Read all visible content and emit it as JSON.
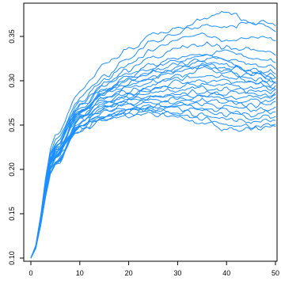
{
  "chart_data": {
    "type": "line",
    "title": "",
    "xlabel": "",
    "ylabel": "",
    "xlim": [
      0,
      50
    ],
    "ylim": [
      0.09,
      0.38
    ],
    "x_ticks": [
      0,
      10,
      20,
      30,
      40,
      50
    ],
    "y_ticks": [
      0.1,
      0.15,
      0.2,
      0.25,
      0.3,
      0.35
    ],
    "x_tick_labels": [
      "0",
      "10",
      "20",
      "30",
      "40",
      "50"
    ],
    "y_tick_labels": [
      "0.10",
      "0.15",
      "0.20",
      "0.25",
      "0.30",
      "0.35"
    ],
    "line_color": "#1e90ff",
    "grid": false,
    "legend": "none",
    "x": [
      0,
      5,
      10,
      15,
      20,
      25,
      30,
      35,
      40,
      45,
      50
    ],
    "series": [
      {
        "values": [
          0.1,
          0.238,
          0.288,
          0.318,
          0.335,
          0.352,
          0.358,
          0.37,
          0.378,
          0.366,
          0.362
        ]
      },
      {
        "values": [
          0.1,
          0.232,
          0.28,
          0.305,
          0.325,
          0.345,
          0.355,
          0.362,
          0.36,
          0.366,
          0.356
        ]
      },
      {
        "values": [
          0.1,
          0.23,
          0.276,
          0.3,
          0.318,
          0.335,
          0.348,
          0.352,
          0.345,
          0.35,
          0.346
        ]
      },
      {
        "values": [
          0.1,
          0.228,
          0.272,
          0.296,
          0.312,
          0.325,
          0.338,
          0.342,
          0.338,
          0.335,
          0.33
        ]
      },
      {
        "values": [
          0.1,
          0.226,
          0.27,
          0.292,
          0.305,
          0.318,
          0.325,
          0.33,
          0.332,
          0.325,
          0.322
        ]
      },
      {
        "values": [
          0.1,
          0.224,
          0.268,
          0.288,
          0.3,
          0.312,
          0.318,
          0.322,
          0.325,
          0.318,
          0.315
        ]
      },
      {
        "values": [
          0.1,
          0.222,
          0.266,
          0.285,
          0.296,
          0.305,
          0.312,
          0.318,
          0.315,
          0.312,
          0.31
        ]
      },
      {
        "values": [
          0.1,
          0.22,
          0.264,
          0.282,
          0.292,
          0.3,
          0.306,
          0.312,
          0.31,
          0.305,
          0.306
        ]
      },
      {
        "values": [
          0.1,
          0.218,
          0.262,
          0.28,
          0.289,
          0.296,
          0.302,
          0.306,
          0.304,
          0.302,
          0.3
        ]
      },
      {
        "values": [
          0.1,
          0.217,
          0.26,
          0.278,
          0.286,
          0.292,
          0.298,
          0.3,
          0.3,
          0.298,
          0.296
        ]
      },
      {
        "values": [
          0.1,
          0.216,
          0.258,
          0.276,
          0.284,
          0.289,
          0.294,
          0.296,
          0.295,
          0.292,
          0.292
        ]
      },
      {
        "values": [
          0.1,
          0.215,
          0.256,
          0.274,
          0.282,
          0.286,
          0.29,
          0.292,
          0.29,
          0.288,
          0.288
        ]
      },
      {
        "values": [
          0.1,
          0.214,
          0.255,
          0.272,
          0.279,
          0.283,
          0.286,
          0.288,
          0.286,
          0.284,
          0.285
        ]
      },
      {
        "values": [
          0.1,
          0.213,
          0.254,
          0.27,
          0.277,
          0.28,
          0.282,
          0.284,
          0.282,
          0.281,
          0.283
        ]
      },
      {
        "values": [
          0.1,
          0.212,
          0.252,
          0.268,
          0.275,
          0.278,
          0.279,
          0.281,
          0.279,
          0.277,
          0.28
        ]
      },
      {
        "values": [
          0.1,
          0.211,
          0.25,
          0.266,
          0.273,
          0.275,
          0.276,
          0.278,
          0.275,
          0.272,
          0.276
        ]
      },
      {
        "values": [
          0.1,
          0.21,
          0.249,
          0.264,
          0.27,
          0.272,
          0.273,
          0.274,
          0.271,
          0.268,
          0.27
        ]
      },
      {
        "values": [
          0.1,
          0.209,
          0.248,
          0.262,
          0.268,
          0.269,
          0.27,
          0.27,
          0.266,
          0.262,
          0.265
        ]
      },
      {
        "values": [
          0.1,
          0.208,
          0.247,
          0.261,
          0.266,
          0.268,
          0.268,
          0.266,
          0.262,
          0.258,
          0.26
        ]
      },
      {
        "values": [
          0.1,
          0.207,
          0.246,
          0.26,
          0.265,
          0.266,
          0.266,
          0.262,
          0.258,
          0.254,
          0.256
        ]
      },
      {
        "values": [
          0.1,
          0.206,
          0.245,
          0.258,
          0.263,
          0.264,
          0.263,
          0.258,
          0.252,
          0.248,
          0.252
        ]
      },
      {
        "values": [
          0.1,
          0.205,
          0.244,
          0.256,
          0.261,
          0.262,
          0.26,
          0.254,
          0.245,
          0.246,
          0.25
        ]
      },
      {
        "values": [
          0.1,
          0.224,
          0.27,
          0.294,
          0.308,
          0.315,
          0.322,
          0.328,
          0.322,
          0.308,
          0.3
        ]
      },
      {
        "values": [
          0.1,
          0.221,
          0.266,
          0.29,
          0.302,
          0.31,
          0.316,
          0.32,
          0.318,
          0.312,
          0.305
        ]
      },
      {
        "values": [
          0.1,
          0.219,
          0.263,
          0.286,
          0.298,
          0.305,
          0.31,
          0.315,
          0.31,
          0.3,
          0.293
        ]
      }
    ]
  }
}
